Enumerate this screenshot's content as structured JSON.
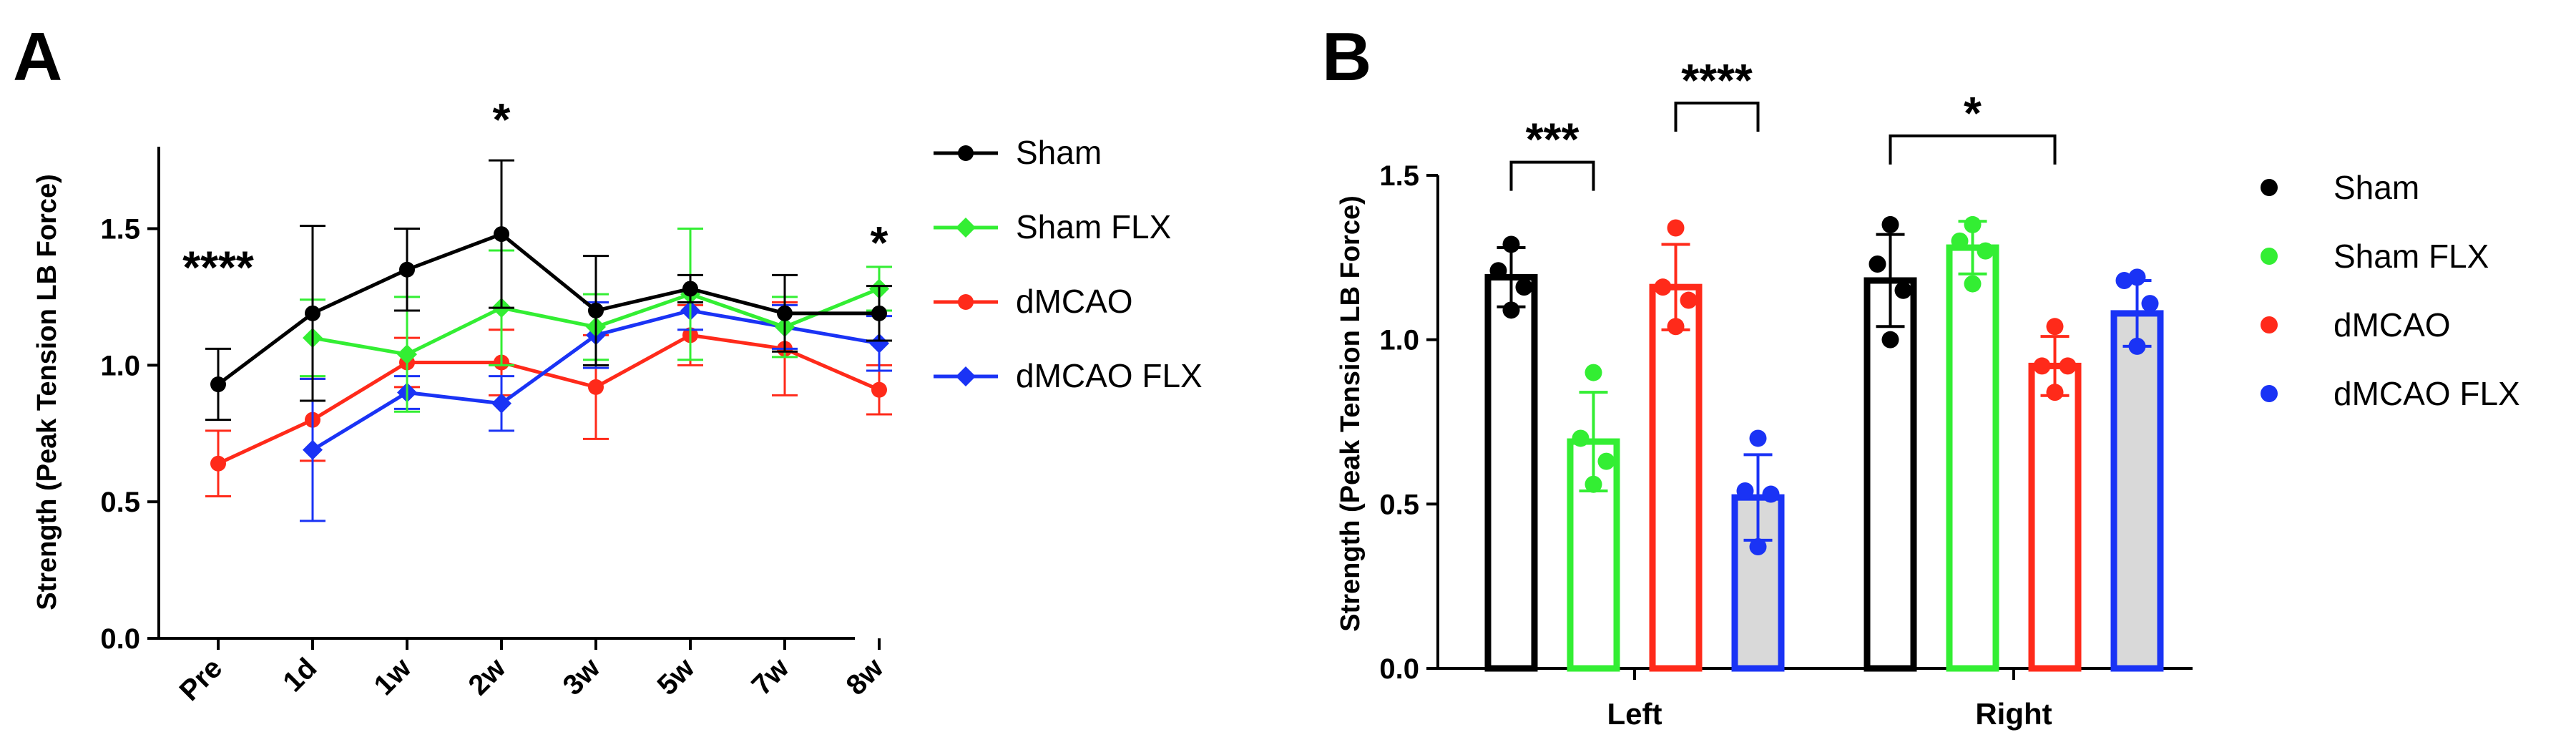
{
  "chart_data": [
    {
      "panel": "A",
      "type": "line",
      "ylabel": "Strength (Peak Tension LB Force)",
      "xlabel": "",
      "categories": [
        "Pre",
        "1d",
        "1w",
        "2w",
        "3w",
        "5w",
        "7w",
        "8w"
      ],
      "ylim": [
        0,
        1.8
      ],
      "yticks": [
        0.0,
        0.5,
        1.0,
        1.5
      ],
      "ytick_labels": [
        "0.0",
        "0.5",
        "1.0",
        "1.5"
      ],
      "series": [
        {
          "name": "Sham",
          "color": "#000000",
          "marker": "circle",
          "values": [
            0.93,
            1.19,
            1.35,
            1.48,
            1.2,
            1.28,
            1.19,
            1.19
          ],
          "errors": [
            0.13,
            0.32,
            0.15,
            0.27,
            0.2,
            0.05,
            0.14,
            0.1
          ]
        },
        {
          "name": "Sham FLX",
          "color": "#33ee33",
          "marker": "diamond",
          "values": [
            null,
            1.1,
            1.04,
            1.21,
            1.14,
            1.26,
            1.14,
            1.28
          ],
          "errors": [
            null,
            0.14,
            0.21,
            0.21,
            0.12,
            0.24,
            0.11,
            0.08
          ]
        },
        {
          "name": "dMCAO",
          "color": "#ff2a1a",
          "marker": "circle",
          "values": [
            0.64,
            0.8,
            1.01,
            1.01,
            0.92,
            1.11,
            1.06,
            0.91
          ],
          "errors": [
            0.12,
            0.15,
            0.09,
            0.12,
            0.19,
            0.11,
            0.17,
            0.09
          ]
        },
        {
          "name": "dMCAO FLX",
          "color": "#1a33f5",
          "marker": "diamond",
          "values": [
            null,
            0.69,
            0.9,
            0.86,
            1.11,
            1.2,
            1.14,
            1.08
          ],
          "errors": [
            null,
            0.26,
            0.06,
            0.1,
            0.12,
            0.07,
            0.08,
            0.1
          ]
        }
      ],
      "annotations": [
        {
          "text": "****",
          "x": "Pre",
          "y": 1.38
        },
        {
          "text": "*",
          "x": "2w",
          "y": 1.92
        },
        {
          "text": "*",
          "x": "8w",
          "y": 1.47
        }
      ],
      "legend": [
        "Sham",
        "Sham FLX",
        "dMCAO",
        "dMCAO FLX"
      ],
      "legend_placement": "right"
    },
    {
      "panel": "B",
      "type": "bar",
      "ylabel": "Strength (Peak Tension LB Force)",
      "xlabel": "",
      "categories": [
        "Left",
        "Right"
      ],
      "ylim": [
        0,
        1.5
      ],
      "yticks": [
        0.0,
        0.5,
        1.0,
        1.5
      ],
      "ytick_labels": [
        "0.0",
        "0.5",
        "1.0",
        "1.5"
      ],
      "series": [
        {
          "name": "Sham",
          "color": "#000000",
          "fill": "#ffffff",
          "values": [
            1.19,
            1.18
          ],
          "errors": [
            0.09,
            0.14
          ],
          "points": [
            [
              1.29,
              1.21,
              1.16,
              1.09
            ],
            [
              1.35,
              1.23,
              1.15,
              1.0
            ]
          ]
        },
        {
          "name": "Sham FLX",
          "color": "#33ee33",
          "fill": "#ffffff",
          "values": [
            0.69,
            1.28
          ],
          "errors": [
            0.15,
            0.08
          ],
          "points": [
            [
              0.9,
              0.7,
              0.63,
              0.56
            ],
            [
              1.35,
              1.3,
              1.27,
              1.17
            ]
          ]
        },
        {
          "name": "dMCAO",
          "color": "#ff2a1a",
          "fill": "#ffffff",
          "values": [
            1.16,
            0.92
          ],
          "errors": [
            0.13,
            0.09
          ],
          "points": [
            [
              1.34,
              1.16,
              1.12,
              1.04
            ],
            [
              1.04,
              0.92,
              0.92,
              0.84
            ]
          ]
        },
        {
          "name": "dMCAO FLX",
          "color": "#1a33f5",
          "fill": "#d9d9d9",
          "values": [
            0.52,
            1.08
          ],
          "errors": [
            0.13,
            0.1
          ],
          "points": [
            [
              0.7,
              0.54,
              0.53,
              0.37
            ],
            [
              1.19,
              1.18,
              1.11,
              0.98
            ]
          ]
        }
      ],
      "significance": [
        {
          "label": "***",
          "category": "Left",
          "from_series": 0,
          "to_series": 1,
          "y": 1.54
        },
        {
          "label": "****",
          "category": "Left",
          "from_series": 2,
          "to_series": 3,
          "y": 1.72
        },
        {
          "label": "*",
          "category": "Right",
          "from_series": 0,
          "to_series": 2,
          "y": 1.62
        }
      ],
      "legend": [
        "Sham",
        "Sham FLX",
        "dMCAO",
        "dMCAO FLX"
      ],
      "legend_placement": "right"
    }
  ],
  "panel_labels": [
    "A",
    "B"
  ]
}
